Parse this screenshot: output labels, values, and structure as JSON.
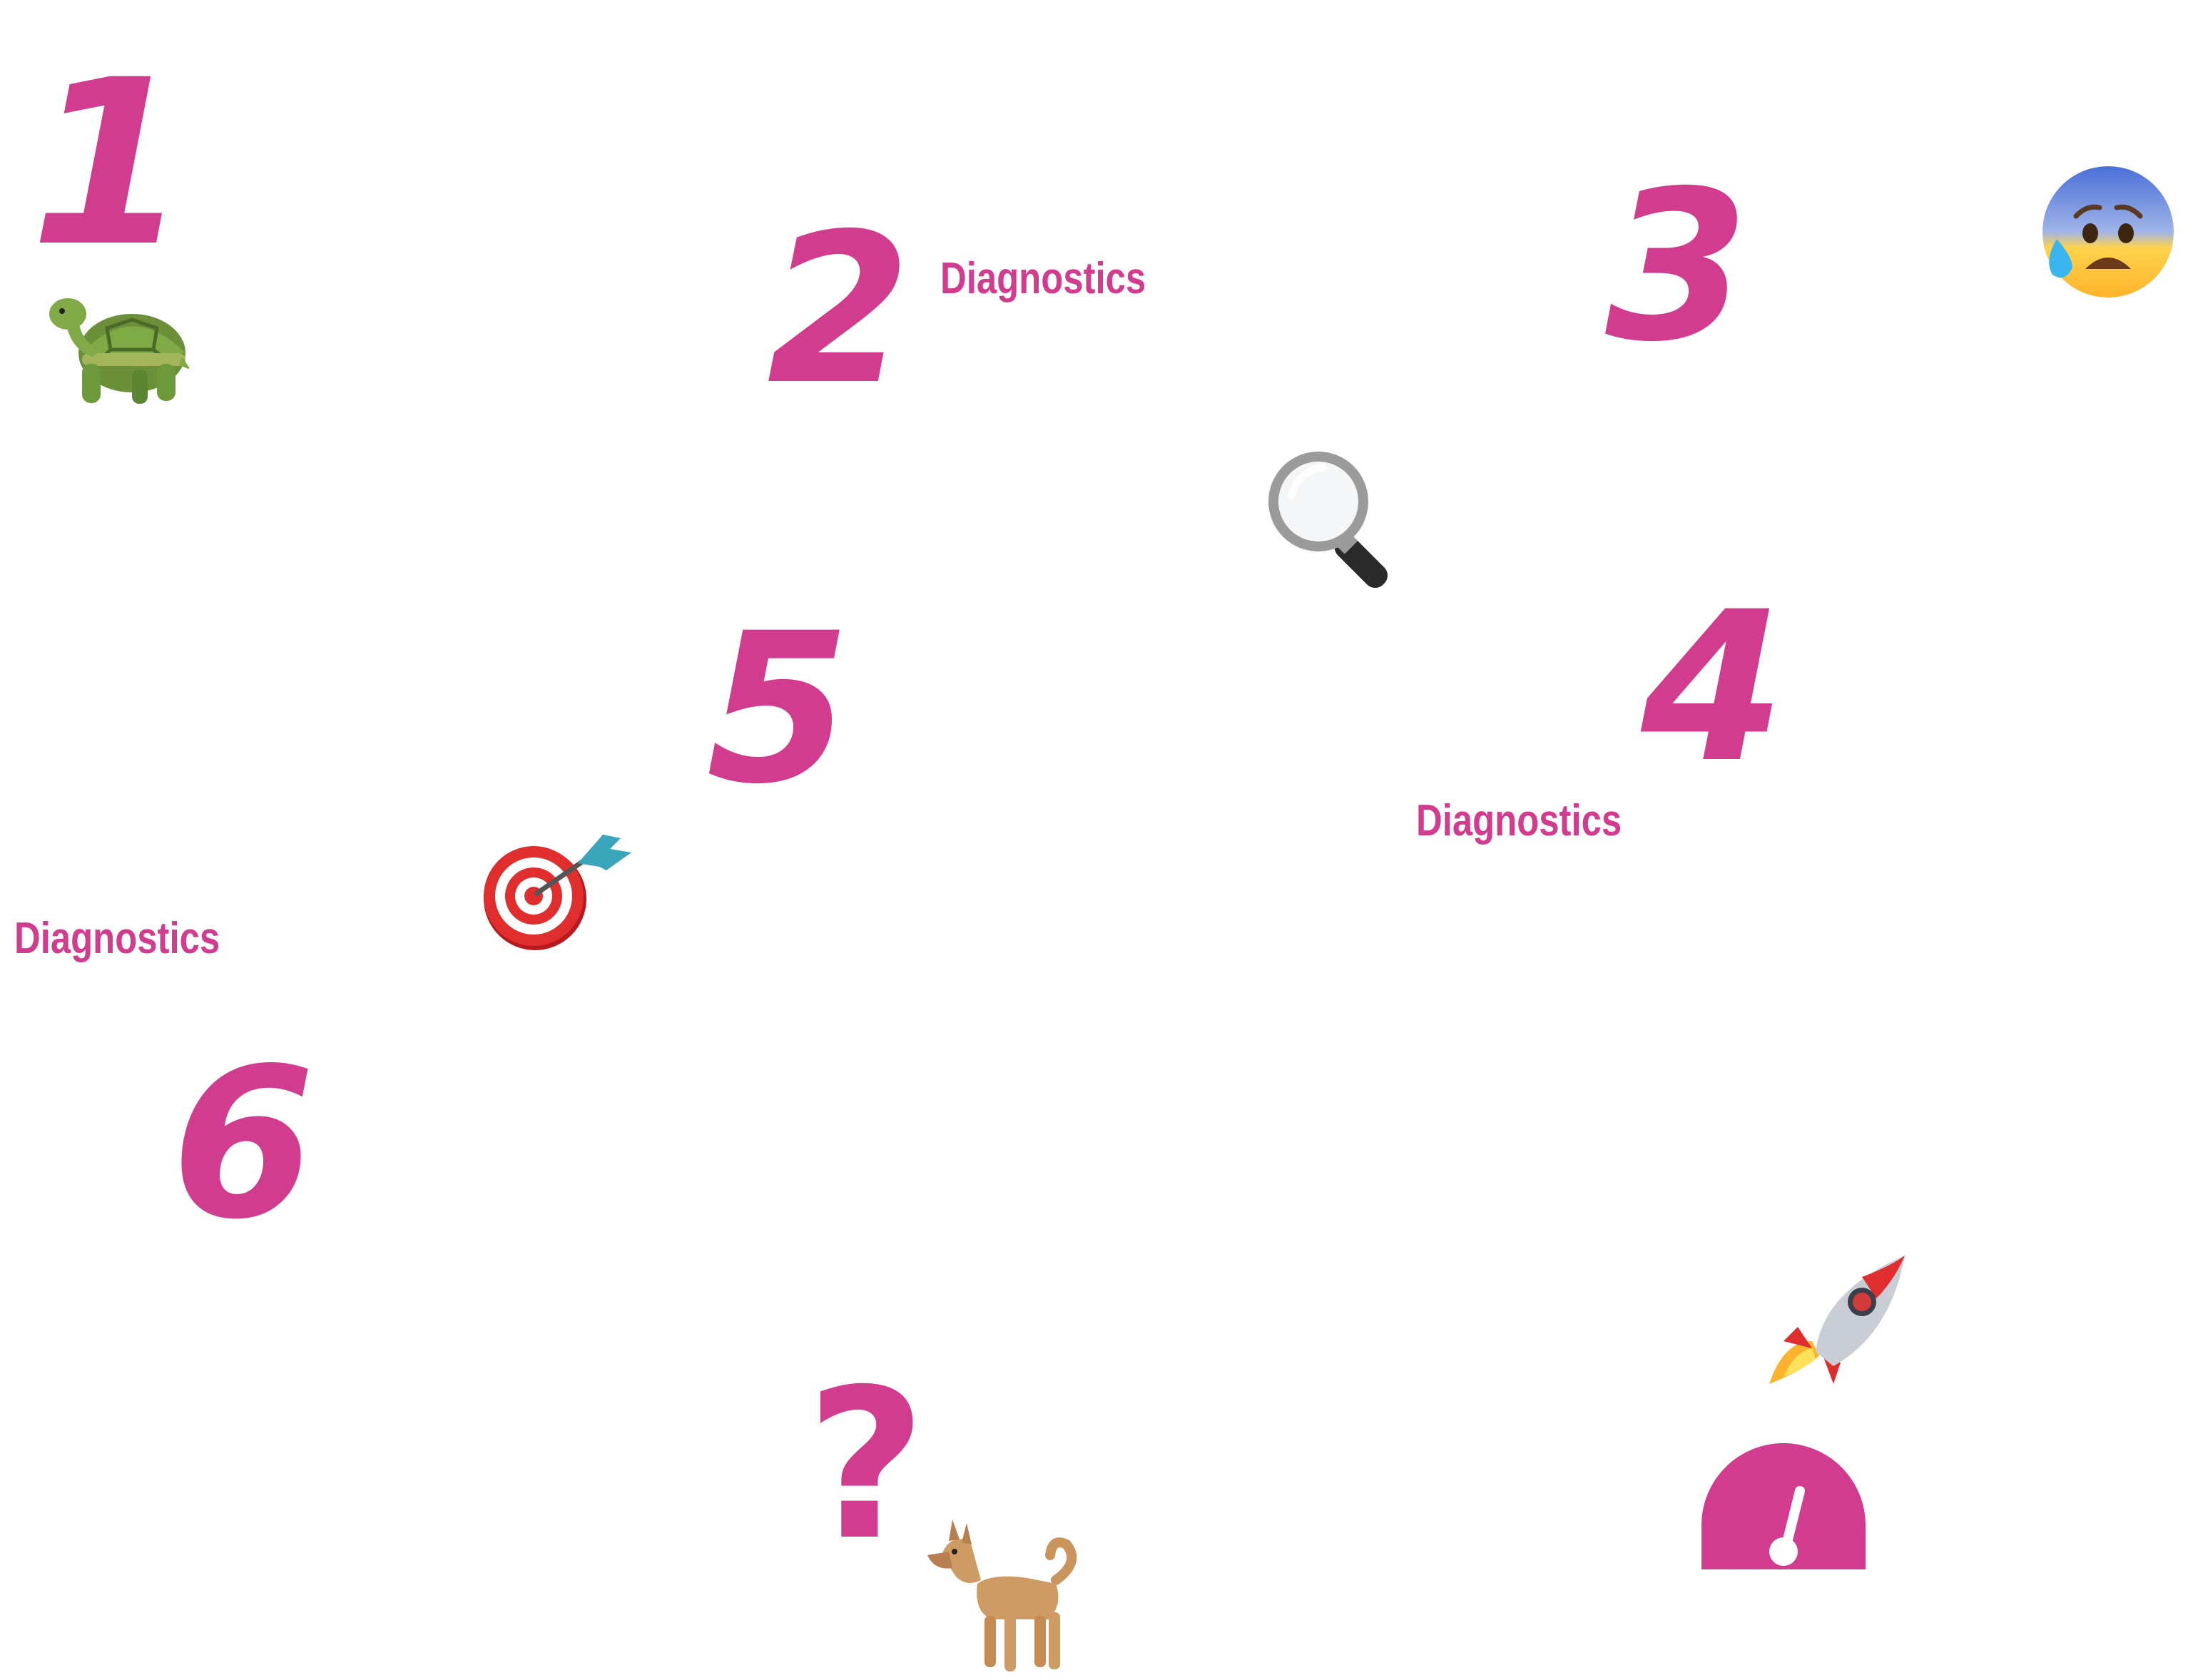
{
  "colors": {
    "accent": "#d13c8e"
  },
  "steps": [
    {
      "number": "1",
      "icon": "turtle-icon"
    },
    {
      "number": "2",
      "label": "Diagnostics"
    },
    {
      "number": "3",
      "icon": "anxious-face-icon"
    },
    {
      "number": "4",
      "label": "Diagnostics",
      "icon": "magnifying-glass-icon"
    },
    {
      "number": "5",
      "icon": "direct-hit-target-icon"
    },
    {
      "number": "6",
      "label": "Diagnostics"
    },
    {
      "number": "?",
      "icon": "dog-icon"
    }
  ],
  "extra_icons": [
    "rocket-icon",
    "speedometer-icon"
  ]
}
